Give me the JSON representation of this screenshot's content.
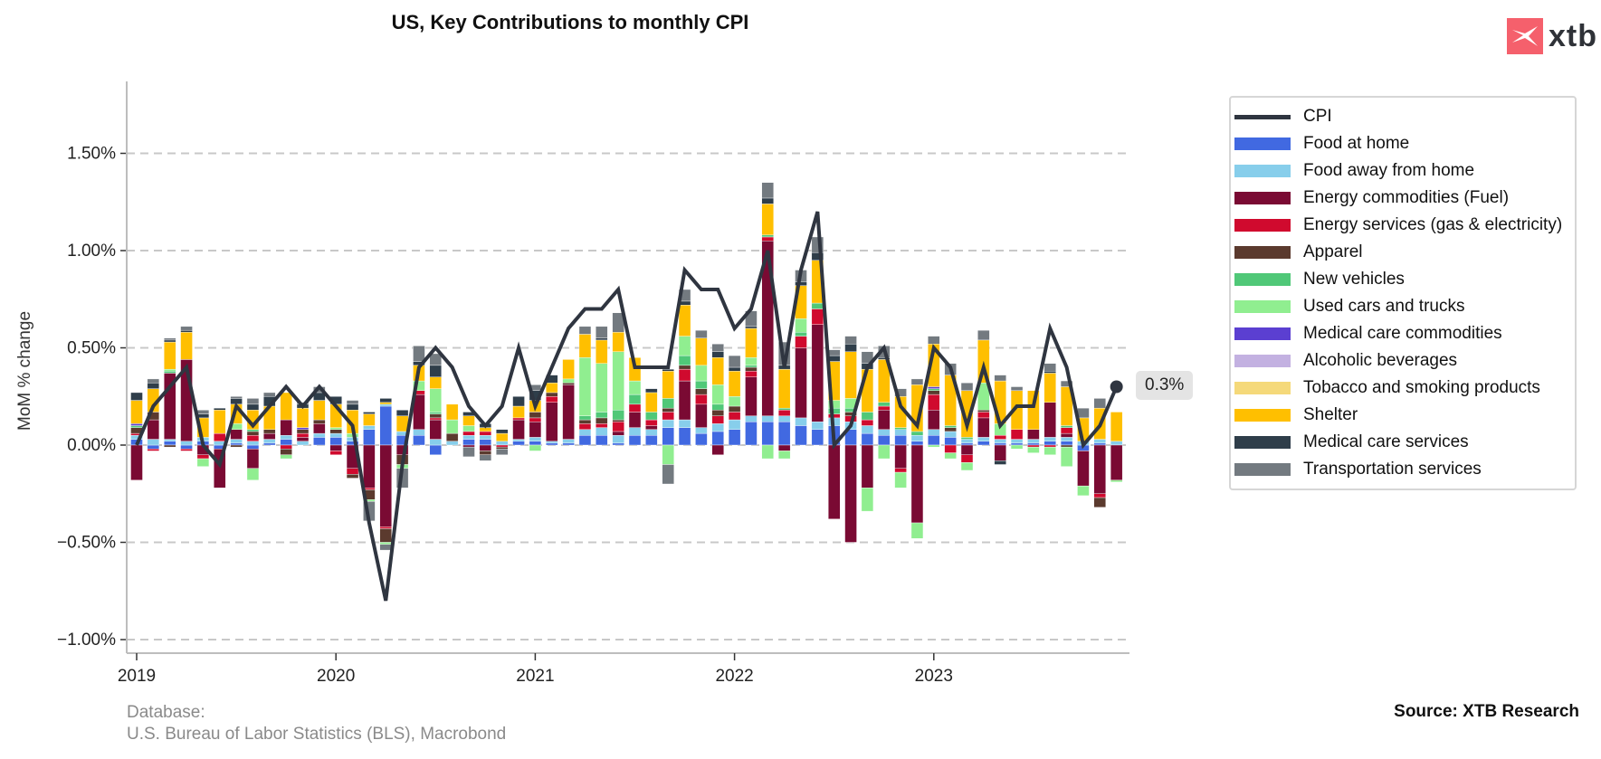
{
  "header": {
    "title": "US, Key Contributions to monthly CPI",
    "logo_text": "xtb"
  },
  "footer": {
    "database_label": "Database:",
    "database_source": "U.S. Bureau of Labor Statistics (BLS), Macrobond",
    "source": "Source: XTB Research"
  },
  "last_value_label": "0.3%",
  "chart_data": {
    "type": "bar",
    "stacked": true,
    "title": "US, Key Contributions to monthly CPI",
    "xlabel": "",
    "ylabel": "MoM % change",
    "ylim": [
      -1.05,
      1.8
    ],
    "yticks": [
      -1.0,
      -0.5,
      0.0,
      0.5,
      1.0,
      1.5
    ],
    "ytick_labels": [
      "−1.00%",
      "−0.50%",
      "0.00%",
      "0.50%",
      "1.00%",
      "1.50%"
    ],
    "xtick_labels": [
      "2019",
      "2020",
      "2021",
      "2022",
      "2023"
    ],
    "xtick_month_index": [
      0,
      12,
      24,
      36,
      48
    ],
    "grid": "horizontal-dashed",
    "legend_position": "right",
    "months": [
      "2019-01",
      "2019-02",
      "2019-03",
      "2019-04",
      "2019-05",
      "2019-06",
      "2019-07",
      "2019-08",
      "2019-09",
      "2019-10",
      "2019-11",
      "2019-12",
      "2020-01",
      "2020-02",
      "2020-03",
      "2020-04",
      "2020-05",
      "2020-06",
      "2020-07",
      "2020-08",
      "2020-09",
      "2020-10",
      "2020-11",
      "2020-12",
      "2021-01",
      "2021-02",
      "2021-03",
      "2021-04",
      "2021-05",
      "2021-06",
      "2021-07",
      "2021-08",
      "2021-09",
      "2021-10",
      "2021-11",
      "2021-12",
      "2022-01",
      "2022-02",
      "2022-03",
      "2022-04",
      "2022-05",
      "2022-06",
      "2022-07",
      "2022-08",
      "2022-09",
      "2022-10",
      "2022-11",
      "2022-12",
      "2023-01",
      "2023-02",
      "2023-03",
      "2023-04",
      "2023-05",
      "2023-06",
      "2023-07",
      "2023-08",
      "2023-09",
      "2023-10",
      "2023-11",
      "2023-12"
    ],
    "line": {
      "name": "CPI",
      "color": "#2f3540",
      "values": [
        0.0,
        0.2,
        0.3,
        0.4,
        0.0,
        -0.1,
        0.2,
        0.1,
        0.2,
        0.3,
        0.2,
        0.3,
        0.2,
        0.1,
        -0.4,
        -0.8,
        -0.1,
        0.4,
        0.5,
        0.4,
        0.2,
        0.1,
        0.2,
        0.5,
        0.2,
        0.4,
        0.6,
        0.7,
        0.7,
        0.8,
        0.4,
        0.4,
        0.4,
        0.9,
        0.8,
        0.8,
        0.6,
        0.7,
        1.0,
        0.4,
        0.9,
        1.2,
        0.0,
        0.1,
        0.4,
        0.5,
        0.2,
        0.1,
        0.5,
        0.4,
        0.1,
        0.4,
        0.1,
        0.2,
        0.2,
        0.6,
        0.4,
        0.0,
        0.1,
        0.3
      ]
    },
    "series": [
      {
        "name": "Food at home",
        "color": "#4169e1",
        "values": [
          0.03,
          -0.02,
          0.02,
          -0.02,
          0.02,
          -0.02,
          0.01,
          -0.02,
          0.01,
          0.03,
          0.0,
          0.04,
          0.04,
          0.02,
          0.08,
          0.2,
          0.05,
          0.05,
          -0.05,
          0.0,
          0.03,
          0.03,
          0.0,
          0.02,
          0.02,
          0.01,
          0.01,
          0.05,
          0.05,
          0.01,
          0.05,
          0.05,
          0.09,
          0.09,
          0.06,
          0.07,
          0.08,
          0.12,
          0.12,
          0.12,
          0.1,
          0.08,
          0.1,
          0.08,
          0.06,
          0.05,
          0.05,
          0.02,
          0.05,
          0.04,
          0.01,
          0.02,
          0.01,
          0.01,
          0.01,
          0.02,
          0.02,
          -0.03,
          0.01,
          0.0
        ]
      },
      {
        "name": "Food away from home",
        "color": "#87ceeb",
        "values": [
          0.02,
          0.03,
          0.01,
          0.02,
          0.02,
          0.02,
          0.02,
          0.02,
          0.02,
          0.02,
          0.02,
          0.02,
          0.02,
          0.02,
          0.02,
          0.01,
          0.02,
          0.03,
          0.03,
          0.02,
          0.02,
          0.02,
          0.02,
          0.01,
          0.02,
          0.01,
          0.02,
          0.03,
          0.04,
          0.04,
          0.04,
          0.03,
          0.04,
          0.04,
          0.03,
          0.04,
          0.05,
          0.03,
          0.03,
          0.03,
          0.04,
          0.04,
          0.04,
          0.04,
          0.04,
          0.03,
          0.03,
          0.03,
          0.03,
          0.03,
          0.02,
          0.02,
          0.02,
          0.02,
          0.02,
          0.02,
          0.02,
          0.02,
          0.02,
          0.02
        ]
      },
      {
        "name": "Energy commodities (Fuel)",
        "color": "#7a0a33",
        "values": [
          -0.18,
          0.1,
          0.34,
          0.42,
          -0.05,
          -0.2,
          0.05,
          -0.1,
          0.03,
          0.08,
          0.02,
          0.05,
          -0.03,
          -0.12,
          -0.22,
          -0.42,
          -0.05,
          0.18,
          0.1,
          0.0,
          -0.01,
          -0.03,
          0.0,
          0.1,
          0.08,
          0.2,
          0.28,
          0.0,
          0.0,
          0.02,
          0.08,
          0.02,
          0.0,
          0.2,
          0.12,
          -0.05,
          0.0,
          0.2,
          0.9,
          -0.03,
          0.36,
          0.5,
          -0.38,
          -0.5,
          -0.22,
          0.1,
          -0.12,
          -0.4,
          0.1,
          0.0,
          -0.05,
          0.1,
          -0.08,
          0.0,
          0.05,
          0.18,
          0.02,
          -0.18,
          -0.25,
          -0.18
        ]
      },
      {
        "name": "Energy services (gas & electricity)",
        "color": "#d00a2e",
        "values": [
          0.01,
          -0.01,
          0.0,
          -0.01,
          -0.02,
          0.04,
          0.0,
          0.03,
          0.0,
          -0.02,
          0.02,
          0.0,
          -0.02,
          -0.03,
          -0.01,
          -0.01,
          0.0,
          0.02,
          0.01,
          0.0,
          0.02,
          0.02,
          -0.01,
          0.01,
          0.02,
          0.03,
          0.0,
          0.03,
          0.02,
          0.05,
          0.04,
          0.03,
          0.04,
          0.06,
          0.05,
          0.04,
          0.04,
          0.03,
          0.02,
          0.03,
          0.06,
          0.08,
          0.02,
          0.03,
          0.03,
          0.02,
          -0.02,
          0.0,
          0.08,
          -0.04,
          -0.04,
          0.03,
          0.02,
          0.05,
          -0.01,
          -0.01,
          0.03,
          0.0,
          -0.02,
          0.0
        ]
      },
      {
        "name": "Apparel",
        "color": "#5b3a2e",
        "values": [
          0.03,
          0.04,
          -0.01,
          0.0,
          0.0,
          0.0,
          -0.01,
          0.02,
          0.02,
          -0.03,
          0.02,
          0.02,
          0.02,
          -0.02,
          -0.05,
          -0.07,
          -0.05,
          0.0,
          0.02,
          0.04,
          0.0,
          -0.02,
          -0.01,
          0.0,
          0.03,
          0.02,
          0.01,
          0.02,
          0.03,
          0.01,
          0.0,
          0.0,
          0.02,
          0.02,
          0.03,
          0.03,
          0.03,
          0.02,
          0.0,
          0.0,
          0.0,
          0.0,
          0.0,
          0.02,
          0.0,
          0.0,
          0.0,
          0.0,
          0.02,
          0.02,
          0.0,
          0.01,
          0.0,
          0.0,
          0.0,
          0.0,
          -0.01,
          0.0,
          -0.05,
          0.0
        ]
      },
      {
        "name": "New vehicles",
        "color": "#50c878",
        "values": [
          0.01,
          0.0,
          0.01,
          0.0,
          0.0,
          0.0,
          0.0,
          0.01,
          0.0,
          0.0,
          0.0,
          0.0,
          0.0,
          0.0,
          0.0,
          0.0,
          0.0,
          0.0,
          0.01,
          0.0,
          0.0,
          0.0,
          0.0,
          0.0,
          0.0,
          0.0,
          0.0,
          0.02,
          0.03,
          0.05,
          0.05,
          0.04,
          0.05,
          0.05,
          0.04,
          0.03,
          0.0,
          0.01,
          0.01,
          0.01,
          0.02,
          0.03,
          0.03,
          0.02,
          0.04,
          0.02,
          0.01,
          0.02,
          0.01,
          0.01,
          0.01,
          0.0,
          0.0,
          0.0,
          0.0,
          0.0,
          0.01,
          0.0,
          0.0,
          0.0
        ]
      },
      {
        "name": "Used cars and trucks",
        "color": "#90ee90",
        "values": [
          0.0,
          0.0,
          0.01,
          0.0,
          -0.04,
          0.0,
          0.03,
          -0.06,
          0.0,
          -0.02,
          0.0,
          0.0,
          0.01,
          0.02,
          -0.01,
          -0.01,
          -0.02,
          0.05,
          0.12,
          0.07,
          0.03,
          0.0,
          0.0,
          0.0,
          -0.03,
          0.0,
          0.02,
          0.3,
          0.25,
          0.3,
          0.07,
          0.0,
          -0.1,
          0.1,
          0.08,
          0.1,
          0.05,
          0.04,
          -0.07,
          -0.04,
          0.07,
          0.0,
          0.04,
          0.05,
          -0.12,
          -0.07,
          -0.08,
          -0.08,
          -0.01,
          -0.03,
          -0.04,
          0.14,
          0.06,
          -0.02,
          -0.03,
          -0.04,
          -0.1,
          -0.05,
          0.0,
          -0.01
        ]
      },
      {
        "name": "Medical care commodities",
        "color": "#5b3fd1",
        "values": [
          0.01,
          0.0,
          0.0,
          0.0,
          0.0,
          0.0,
          0.0,
          0.0,
          0.0,
          0.0,
          0.01,
          0.0,
          0.0,
          0.0,
          0.0,
          0.0,
          0.0,
          0.0,
          0.0,
          0.0,
          0.0,
          0.0,
          0.0,
          0.0,
          0.0,
          0.0,
          0.0,
          0.0,
          0.0,
          0.0,
          0.0,
          0.0,
          0.0,
          0.0,
          0.0,
          0.0,
          0.0,
          0.0,
          0.0,
          0.0,
          0.0,
          0.0,
          0.0,
          0.0,
          0.0,
          0.0,
          0.0,
          0.0,
          0.01,
          0.0,
          0.0,
          0.0,
          0.0,
          0.0,
          0.0,
          0.0,
          0.0,
          0.0,
          0.0,
          0.0
        ]
      },
      {
        "name": "Alcoholic beverages",
        "color": "#c3b1e1",
        "values": [
          0.0,
          0.0,
          0.0,
          0.0,
          0.0,
          0.0,
          0.0,
          0.0,
          0.0,
          0.0,
          0.0,
          0.0,
          0.0,
          0.0,
          0.0,
          0.0,
          0.0,
          0.0,
          0.0,
          0.0,
          0.0,
          0.0,
          0.0,
          0.0,
          0.0,
          0.0,
          0.0,
          0.0,
          0.0,
          0.0,
          0.0,
          0.0,
          0.0,
          0.0,
          0.0,
          0.0,
          0.0,
          0.0,
          0.0,
          0.0,
          0.0,
          0.0,
          0.0,
          0.0,
          0.0,
          0.0,
          0.0,
          0.0,
          0.0,
          0.0,
          0.0,
          0.0,
          0.0,
          0.0,
          0.0,
          0.0,
          0.0,
          0.0,
          0.0,
          0.0
        ]
      },
      {
        "name": "Tobacco and smoking products",
        "color": "#f5d97a",
        "values": [
          0.0,
          0.0,
          0.0,
          0.0,
          0.0,
          0.0,
          0.0,
          0.0,
          0.0,
          0.0,
          0.0,
          0.0,
          0.0,
          0.0,
          0.0,
          0.0,
          0.0,
          0.0,
          0.0,
          0.0,
          0.0,
          0.0,
          0.0,
          0.0,
          0.0,
          0.0,
          0.0,
          0.0,
          0.0,
          0.0,
          0.0,
          0.0,
          0.0,
          0.0,
          0.0,
          0.0,
          0.0,
          0.0,
          0.0,
          0.0,
          0.0,
          0.0,
          0.0,
          0.0,
          0.0,
          0.0,
          0.0,
          0.0,
          0.0,
          0.0,
          0.0,
          0.0,
          0.0,
          0.0,
          0.0,
          0.0,
          0.0,
          0.0,
          0.0,
          0.0
        ]
      },
      {
        "name": "Shelter",
        "color": "#ffbf00",
        "values": [
          0.12,
          0.12,
          0.14,
          0.14,
          0.1,
          0.12,
          0.1,
          0.1,
          0.12,
          0.14,
          0.1,
          0.1,
          0.12,
          0.12,
          0.06,
          0.01,
          0.08,
          0.08,
          0.06,
          0.08,
          0.05,
          0.02,
          0.04,
          0.06,
          0.06,
          0.05,
          0.1,
          0.12,
          0.12,
          0.1,
          0.12,
          0.1,
          0.14,
          0.16,
          0.14,
          0.14,
          0.13,
          0.15,
          0.16,
          0.2,
          0.17,
          0.22,
          0.2,
          0.24,
          0.22,
          0.22,
          0.16,
          0.24,
          0.22,
          0.26,
          0.24,
          0.22,
          0.22,
          0.2,
          0.2,
          0.15,
          0.2,
          0.12,
          0.16,
          0.15
        ]
      },
      {
        "name": "Medical care services",
        "color": "#2f3e4a",
        "values": [
          0.04,
          0.03,
          0.01,
          0.01,
          0.02,
          0.01,
          0.03,
          0.03,
          0.05,
          0.0,
          0.02,
          0.04,
          0.04,
          0.03,
          0.01,
          0.02,
          0.03,
          0.02,
          0.06,
          0.0,
          0.02,
          0.02,
          0.02,
          0.05,
          0.05,
          0.04,
          0.0,
          0.0,
          0.01,
          0.0,
          0.0,
          0.02,
          0.01,
          0.02,
          0.0,
          0.03,
          0.02,
          0.01,
          0.03,
          0.02,
          0.02,
          0.04,
          0.03,
          0.04,
          0.03,
          0.01,
          0.0,
          0.0,
          0.0,
          0.0,
          0.0,
          0.0,
          -0.02,
          0.0,
          0.0,
          0.01,
          0.0,
          0.0,
          0.0,
          0.0
        ]
      },
      {
        "name": "Transportation services",
        "color": "#737a80",
        "values": [
          0.0,
          0.02,
          0.01,
          0.02,
          0.02,
          0.0,
          0.01,
          0.03,
          0.02,
          0.0,
          0.01,
          0.03,
          0.0,
          0.02,
          -0.1,
          -0.03,
          -0.1,
          0.08,
          0.06,
          0.0,
          -0.05,
          -0.03,
          -0.03,
          0.0,
          0.03,
          0.0,
          0.0,
          0.04,
          0.06,
          0.1,
          0.0,
          0.0,
          -0.1,
          0.06,
          0.04,
          0.04,
          0.06,
          0.08,
          0.08,
          0.12,
          0.06,
          0.08,
          0.03,
          0.04,
          0.06,
          0.06,
          0.04,
          0.03,
          0.04,
          0.06,
          0.04,
          0.05,
          0.03,
          0.02,
          0.0,
          0.04,
          0.03,
          0.05,
          0.05,
          0.0
        ]
      }
    ]
  },
  "legend": {
    "items": [
      {
        "label": "CPI",
        "color": "#2f3540",
        "kind": "line"
      },
      {
        "label": "Food at home",
        "color": "#4169e1",
        "kind": "bar"
      },
      {
        "label": "Food away from home",
        "color": "#87ceeb",
        "kind": "bar"
      },
      {
        "label": "Energy commodities (Fuel)",
        "color": "#7a0a33",
        "kind": "bar"
      },
      {
        "label": "Energy services (gas & electricity)",
        "color": "#d00a2e",
        "kind": "bar"
      },
      {
        "label": "Apparel",
        "color": "#5b3a2e",
        "kind": "bar"
      },
      {
        "label": "New vehicles",
        "color": "#50c878",
        "kind": "bar"
      },
      {
        "label": "Used cars and trucks",
        "color": "#90ee90",
        "kind": "bar"
      },
      {
        "label": "Medical care commodities",
        "color": "#5b3fd1",
        "kind": "bar"
      },
      {
        "label": "Alcoholic beverages",
        "color": "#c3b1e1",
        "kind": "bar"
      },
      {
        "label": "Tobacco and smoking products",
        "color": "#f5d97a",
        "kind": "bar"
      },
      {
        "label": "Shelter",
        "color": "#ffbf00",
        "kind": "bar"
      },
      {
        "label": "Medical care services",
        "color": "#2f3e4a",
        "kind": "bar"
      },
      {
        "label": "Transportation services",
        "color": "#737a80",
        "kind": "bar"
      }
    ]
  }
}
